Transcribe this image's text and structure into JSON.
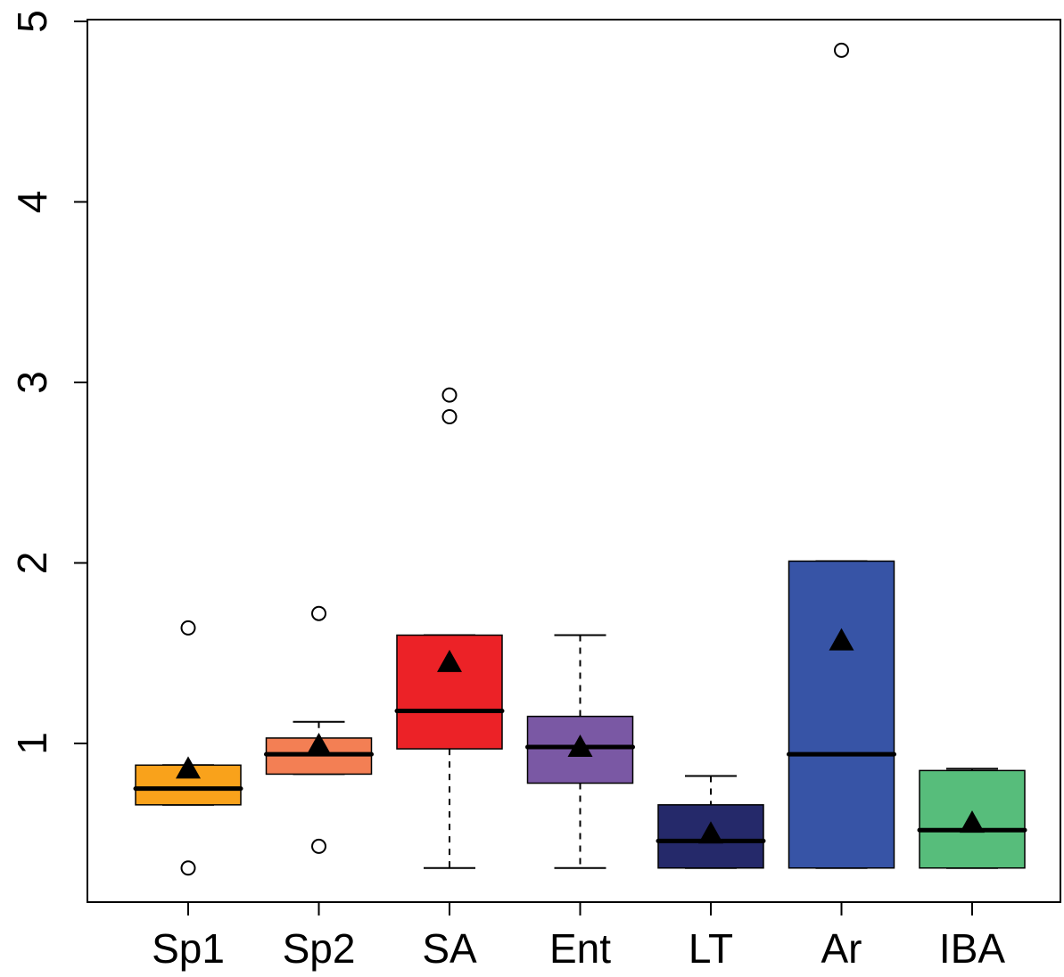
{
  "chart_data": {
    "type": "boxplot",
    "title": "",
    "xlabel": "",
    "ylabel": "",
    "ylim": [
      0.1,
      5.05
    ],
    "y_ticks": [
      1,
      2,
      3,
      4,
      5
    ],
    "y_tick_labels": [
      "1",
      "2",
      "3",
      "4",
      "5"
    ],
    "grid": false,
    "legend": "none",
    "mean_marker": "filled-triangle",
    "categories": [
      "Sp1",
      "Sp2",
      "SA",
      "Ent",
      "LT",
      "Ar",
      "IBA"
    ],
    "colors": [
      "#f9a21b",
      "#f37f54",
      "#ec2227",
      "#7a58a4",
      "#25296a",
      "#3754a6",
      "#57bd7b"
    ],
    "boxes": [
      {
        "category": "Sp1",
        "whisker_low": 0.66,
        "q1": 0.66,
        "median": 0.75,
        "q3": 0.88,
        "whisker_high": 0.88,
        "mean": 0.86,
        "outliers": [
          1.64,
          0.31
        ]
      },
      {
        "category": "Sp2",
        "whisker_low": 0.83,
        "q1": 0.83,
        "median": 0.94,
        "q3": 1.03,
        "whisker_high": 1.12,
        "mean": 0.99,
        "outliers": [
          1.72,
          0.43
        ]
      },
      {
        "category": "SA",
        "whisker_low": 0.31,
        "q1": 0.97,
        "median": 1.18,
        "q3": 1.6,
        "whisker_high": 1.6,
        "mean": 1.45,
        "outliers": [
          2.93,
          2.81
        ]
      },
      {
        "category": "Ent",
        "whisker_low": 0.31,
        "q1": 0.78,
        "median": 0.98,
        "q3": 1.15,
        "whisker_high": 1.6,
        "mean": 0.98,
        "outliers": []
      },
      {
        "category": "LT",
        "whisker_low": 0.31,
        "q1": 0.31,
        "median": 0.46,
        "q3": 0.66,
        "whisker_high": 0.82,
        "mean": 0.5,
        "outliers": []
      },
      {
        "category": "Ar",
        "whisker_low": 0.31,
        "q1": 0.31,
        "median": 0.94,
        "q3": 2.01,
        "whisker_high": 2.01,
        "mean": 1.57,
        "outliers": [
          4.84
        ]
      },
      {
        "category": "IBA",
        "whisker_low": 0.31,
        "q1": 0.31,
        "median": 0.52,
        "q3": 0.85,
        "whisker_high": 0.86,
        "mean": 0.56,
        "outliers": []
      }
    ]
  }
}
